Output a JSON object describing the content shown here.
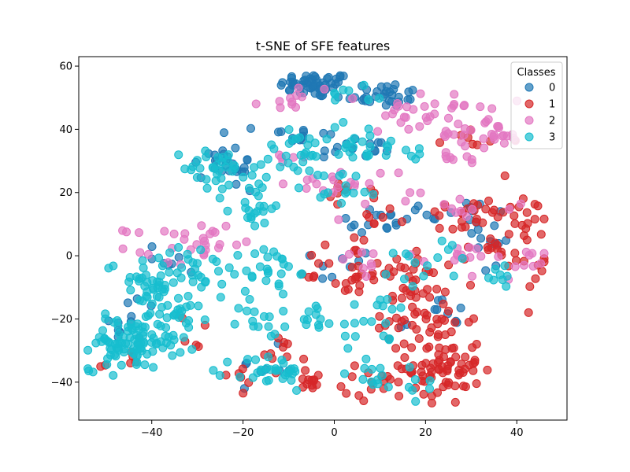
{
  "chart_data": {
    "type": "scatter",
    "title": "t-SNE of SFE features",
    "xlabel": "",
    "ylabel": "",
    "xlim": [
      -56,
      51
    ],
    "ylim": [
      -52,
      63
    ],
    "xticks": [
      -40,
      -20,
      0,
      20,
      40
    ],
    "yticks": [
      -40,
      -20,
      0,
      20,
      40,
      60
    ],
    "xtick_labels": [
      "−40",
      "−20",
      "0",
      "20",
      "40"
    ],
    "ytick_labels": [
      "−40",
      "−20",
      "0",
      "20",
      "40",
      "60"
    ],
    "grid": false,
    "legend": {
      "title": "Classes",
      "placement": "top-right"
    },
    "series": [
      {
        "name": "0",
        "color": "#1f77b4",
        "clusters": [
          {
            "cx": -4,
            "cy": 54,
            "sx": 4,
            "sy": 2,
            "n": 55
          },
          {
            "cx": 10,
            "cy": 51,
            "sx": 5,
            "sy": 2,
            "n": 30
          },
          {
            "cx": -8,
            "cy": 38,
            "sx": 4,
            "sy": 2,
            "n": 15
          },
          {
            "cx": 5,
            "cy": 34,
            "sx": 6,
            "sy": 2,
            "n": 15
          },
          {
            "cx": -26,
            "cy": 30,
            "sx": 3,
            "sy": 3,
            "n": 15
          },
          {
            "cx": -20,
            "cy": 26,
            "sx": 3,
            "sy": 4,
            "n": 10
          },
          {
            "cx": 25,
            "cy": 14,
            "sx": 8,
            "sy": 2,
            "n": 15
          },
          {
            "cx": 8,
            "cy": 10,
            "sx": 4,
            "sy": 2,
            "n": 12
          },
          {
            "cx": 35,
            "cy": 5,
            "sx": 3,
            "sy": 6,
            "n": 12
          },
          {
            "cx": -37,
            "cy": -1,
            "sx": 4,
            "sy": 3,
            "n": 8
          },
          {
            "cx": 2,
            "cy": -3,
            "sx": 3,
            "sy": 3,
            "n": 8
          },
          {
            "cx": -45,
            "cy": -22,
            "sx": 3,
            "sy": 5,
            "n": 10
          },
          {
            "cx": 22,
            "cy": -20,
            "sx": 4,
            "sy": 4,
            "n": 10
          },
          {
            "cx": -15,
            "cy": -35,
            "sx": 3,
            "sy": 3,
            "n": 8
          }
        ]
      },
      {
        "name": "1",
        "color": "#d62728",
        "clusters": [
          {
            "cx": 24,
            "cy": -35,
            "sx": 4,
            "sy": 6,
            "n": 70
          },
          {
            "cx": 18,
            "cy": -20,
            "sx": 6,
            "sy": 4,
            "n": 35
          },
          {
            "cx": 12,
            "cy": -40,
            "sx": 5,
            "sy": 3,
            "n": 20
          },
          {
            "cx": 38,
            "cy": 5,
            "sx": 5,
            "sy": 8,
            "n": 45
          },
          {
            "cx": 28,
            "cy": 12,
            "sx": 5,
            "sy": 3,
            "n": 20
          },
          {
            "cx": 8,
            "cy": -6,
            "sx": 6,
            "sy": 2,
            "n": 25
          },
          {
            "cx": 0,
            "cy": -3,
            "sx": 3,
            "sy": 4,
            "n": 12
          },
          {
            "cx": 20,
            "cy": -7,
            "sx": 5,
            "sy": 4,
            "n": 20
          },
          {
            "cx": -5,
            "cy": -40,
            "sx": 2,
            "sy": 2,
            "n": 12
          },
          {
            "cx": -12,
            "cy": -32,
            "sx": 3,
            "sy": 3,
            "n": 10
          },
          {
            "cx": 5,
            "cy": 20,
            "sx": 4,
            "sy": 2,
            "n": 10
          },
          {
            "cx": 30,
            "cy": 36,
            "sx": 5,
            "sy": 3,
            "n": 8
          },
          {
            "cx": -20,
            "cy": -38,
            "sx": 3,
            "sy": 2,
            "n": 6
          },
          {
            "cx": -45,
            "cy": -33,
            "sx": 3,
            "sy": 2,
            "n": 6
          },
          {
            "cx": -30,
            "cy": -25,
            "sx": 2,
            "sy": 3,
            "n": 5
          },
          {
            "cx": 8,
            "cy": 13,
            "sx": 4,
            "sy": 2,
            "n": 8
          }
        ]
      },
      {
        "name": "2",
        "color": "#e377c2",
        "clusters": [
          {
            "cx": 22,
            "cy": 45,
            "sx": 6,
            "sy": 3,
            "n": 35
          },
          {
            "cx": 32,
            "cy": 38,
            "sx": 5,
            "sy": 2,
            "n": 25
          },
          {
            "cx": -8,
            "cy": 50,
            "sx": 4,
            "sy": 2,
            "n": 12
          },
          {
            "cx": 5,
            "cy": 23,
            "sx": 8,
            "sy": 3,
            "n": 20
          },
          {
            "cx": -28,
            "cy": 5,
            "sx": 3,
            "sy": 3,
            "n": 20
          },
          {
            "cx": -38,
            "cy": 3,
            "sx": 4,
            "sy": 3,
            "n": 10
          },
          {
            "cx": 28,
            "cy": 0,
            "sx": 6,
            "sy": 2,
            "n": 12
          },
          {
            "cx": 38,
            "cy": -4,
            "sx": 4,
            "sy": 3,
            "n": 10
          },
          {
            "cx": 25,
            "cy": 30,
            "sx": 4,
            "sy": 2,
            "n": 8
          },
          {
            "cx": -10,
            "cy": 30,
            "sx": 3,
            "sy": 2,
            "n": 6
          },
          {
            "cx": 30,
            "cy": 15,
            "sx": 6,
            "sy": 2,
            "n": 10
          },
          {
            "cx": 5,
            "cy": -2,
            "sx": 4,
            "sy": 3,
            "n": 8
          }
        ]
      },
      {
        "name": "3",
        "color": "#17becf",
        "clusters": [
          {
            "cx": -45,
            "cy": -28,
            "sx": 5,
            "sy": 4,
            "n": 90
          },
          {
            "cx": -35,
            "cy": -20,
            "sx": 3,
            "sy": 6,
            "n": 35
          },
          {
            "cx": -42,
            "cy": -8,
            "sx": 4,
            "sy": 4,
            "n": 30
          },
          {
            "cx": -30,
            "cy": -3,
            "sx": 4,
            "sy": 5,
            "n": 30
          },
          {
            "cx": -25,
            "cy": 28,
            "sx": 4,
            "sy": 3,
            "n": 30
          },
          {
            "cx": -18,
            "cy": 18,
            "sx": 4,
            "sy": 5,
            "n": 25
          },
          {
            "cx": -14,
            "cy": -5,
            "sx": 3,
            "sy": 4,
            "n": 25
          },
          {
            "cx": -14,
            "cy": -37,
            "sx": 4,
            "sy": 3,
            "n": 30
          },
          {
            "cx": -15,
            "cy": -20,
            "sx": 3,
            "sy": 3,
            "n": 15
          },
          {
            "cx": -5,
            "cy": -20,
            "sx": 3,
            "sy": 3,
            "n": 10
          },
          {
            "cx": -8,
            "cy": 32,
            "sx": 4,
            "sy": 4,
            "n": 25
          },
          {
            "cx": 5,
            "cy": 36,
            "sx": 5,
            "sy": 3,
            "n": 15
          },
          {
            "cx": 2,
            "cy": 22,
            "sx": 4,
            "sy": 3,
            "n": 15
          },
          {
            "cx": 12,
            "cy": 33,
            "sx": 5,
            "sy": 2,
            "n": 12
          },
          {
            "cx": 10,
            "cy": -22,
            "sx": 5,
            "sy": 5,
            "n": 20
          },
          {
            "cx": 20,
            "cy": -2,
            "sx": 5,
            "sy": 4,
            "n": 15
          },
          {
            "cx": 8,
            "cy": -38,
            "sx": 4,
            "sy": 2,
            "n": 10
          },
          {
            "cx": 36,
            "cy": -5,
            "sx": 2,
            "sy": 3,
            "n": 8
          },
          {
            "cx": 5,
            "cy": 52,
            "sx": 3,
            "sy": 2,
            "n": 8
          },
          {
            "cx": 18,
            "cy": -40,
            "sx": 3,
            "sy": 3,
            "n": 8
          }
        ]
      }
    ]
  }
}
